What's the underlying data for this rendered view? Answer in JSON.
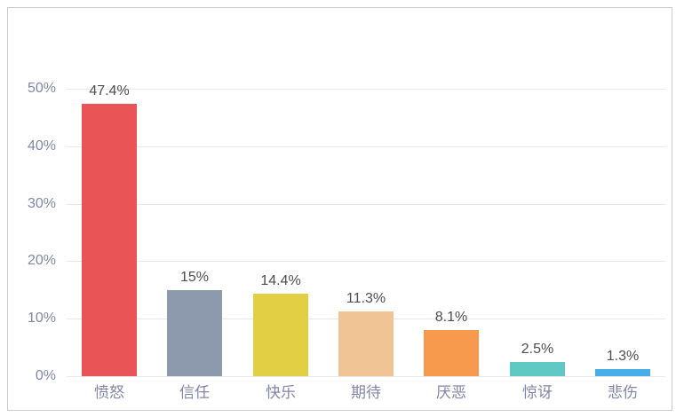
{
  "chart_data": {
    "type": "bar",
    "title": "",
    "categories": [
      "愤怒",
      "信任",
      "快乐",
      "期待",
      "厌恶",
      "惊讶",
      "悲伤"
    ],
    "values": [
      47.4,
      15,
      14.4,
      11.3,
      8.1,
      2.5,
      1.3
    ],
    "value_labels": [
      "47.4%",
      "15%",
      "14.4%",
      "11.3%",
      "8.1%",
      "2.5%",
      "1.3%"
    ],
    "bar_colors": [
      "#e95556",
      "#8d99ad",
      "#e2cf43",
      "#f0c494",
      "#f89a4e",
      "#62c8c4",
      "#47aeea"
    ],
    "y_axis": {
      "min": 0,
      "max": 50,
      "ticks": [
        0,
        10,
        20,
        30,
        40,
        50
      ],
      "tick_labels": [
        "0%",
        "10%",
        "20%",
        "30%",
        "40%",
        "50%"
      ]
    },
    "x_axis": {
      "label": ""
    },
    "grid": true,
    "legend": false,
    "colors": {
      "axis_label": "#8186a6",
      "value_label": "#4d4d4d",
      "gridline": "#e4e8f2",
      "container_border": "#cbcbcb",
      "background": "#ffffff"
    }
  }
}
